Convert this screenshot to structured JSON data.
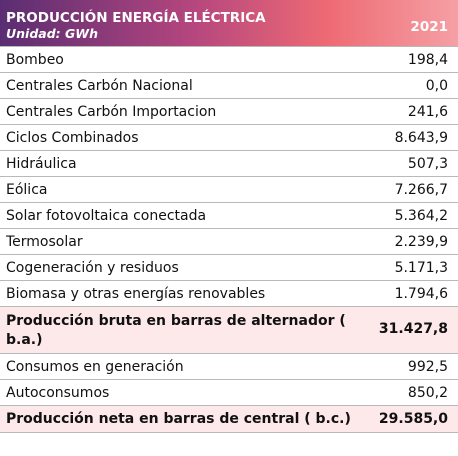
{
  "header": {
    "title": "PRODUCCIÓN ENERGÍA ELÉCTRICA",
    "unit": "Unidad: GWh",
    "year": "2021"
  },
  "rows": [
    {
      "label": "Bombeo",
      "value": "198,4"
    },
    {
      "label": "Centrales Carbón Nacional",
      "value": "0,0"
    },
    {
      "label": "Centrales Carbón Importacion",
      "value": "241,6"
    },
    {
      "label": "Ciclos Combinados",
      "value": "8.643,9"
    },
    {
      "label": "Hidráulica",
      "value": "507,3"
    },
    {
      "label": "Eólica",
      "value": "7.266,7"
    },
    {
      "label": "Solar fotovoltaica conectada",
      "value": "5.364,2"
    },
    {
      "label": "Termosolar",
      "value": "2.239,9"
    },
    {
      "label": "Cogeneración y residuos",
      "value": "5.171,3"
    },
    {
      "label": "Biomasa y otras energías renovables",
      "value": "1.794,6"
    },
    {
      "label": "Producción bruta en barras de alternador ( b.a.)",
      "value": "31.427,8"
    },
    {
      "label": "Consumos en generación",
      "value": "992,5"
    },
    {
      "label": "Autoconsumos",
      "value": "850,2"
    },
    {
      "label": "Producción neta en barras de central ( b.c.)",
      "value": "29.585,0"
    }
  ],
  "colors": {
    "header_gradient_start": "#5a2d72",
    "header_gradient_mid": "#b5467e",
    "header_gradient_end": "#f5a0a5",
    "highlight_row": "#fde8ea"
  }
}
